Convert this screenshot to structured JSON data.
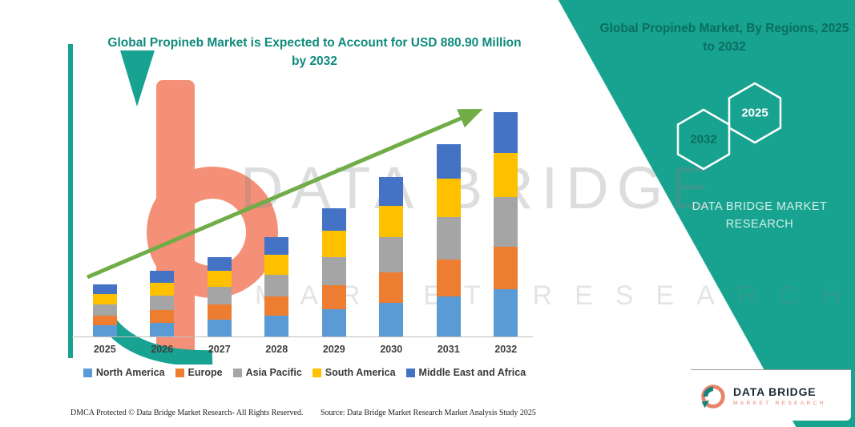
{
  "header": {
    "chart_title": "Global Propineb Market is Expected to Account for USD 880.90 Million by 2032",
    "panel_title": "Global Propineb Market, By Regions, 2025 to 2032"
  },
  "panel": {
    "hex_back_year": "2032",
    "hex_front_year": "2025",
    "brand_line1": "DATA BRIDGE MARKET",
    "brand_line2": "RESEARCH"
  },
  "watermark": {
    "line1": "DATA BRIDGE",
    "line2": "MARKET RESEARCH"
  },
  "footer": {
    "dmca": "DMCA Protected © Data Bridge Market Research-  All Rights Reserved.",
    "source": "Source: Data Bridge Market Research  Market Analysis Study 2025"
  },
  "logo": {
    "name": "DATA BRIDGE",
    "tagline": "MARKET RESEARCH"
  },
  "colors": {
    "teal": "#17a38f",
    "coral": "#f28e76",
    "arrow_green": "#70ad47",
    "title_teal": "#0e8a7c"
  },
  "chart_data": {
    "type": "bar",
    "stacked": true,
    "title": "Global Propineb Market is Expected to Account for USD 880.90 Million by 2032",
    "units": "USD Million",
    "categories": [
      "2025",
      "2026",
      "2027",
      "2028",
      "2029",
      "2030",
      "2031",
      "2032"
    ],
    "series": [
      {
        "name": "North America",
        "color": "#5b9bd5",
        "values": [
          43,
          54,
          66,
          82,
          106,
          132,
          159,
          185
        ]
      },
      {
        "name": "Europe",
        "color": "#ed7d31",
        "values": [
          39,
          49,
          59,
          74,
          96,
          119,
          144,
          167
        ]
      },
      {
        "name": "Asia Pacific",
        "color": "#a5a5a5",
        "values": [
          45,
          57,
          69,
          86,
          111,
          138,
          166,
          194
        ]
      },
      {
        "name": "South America",
        "color": "#ffc000",
        "values": [
          41,
          51,
          63,
          78,
          101,
          125,
          151,
          176
        ]
      },
      {
        "name": "Middle East and Africa",
        "color": "#4472c4",
        "values": [
          36,
          46,
          56,
          70,
          91,
          113,
          136,
          159
        ]
      }
    ],
    "totals": [
      204,
      257,
      313,
      389,
      505,
      627,
      756,
      880.9
    ],
    "final_value_label": "USD 880.90 Million by 2032",
    "y_axis_visible": false,
    "grid": false,
    "legend_position": "bottom",
    "trend_arrow": true
  }
}
